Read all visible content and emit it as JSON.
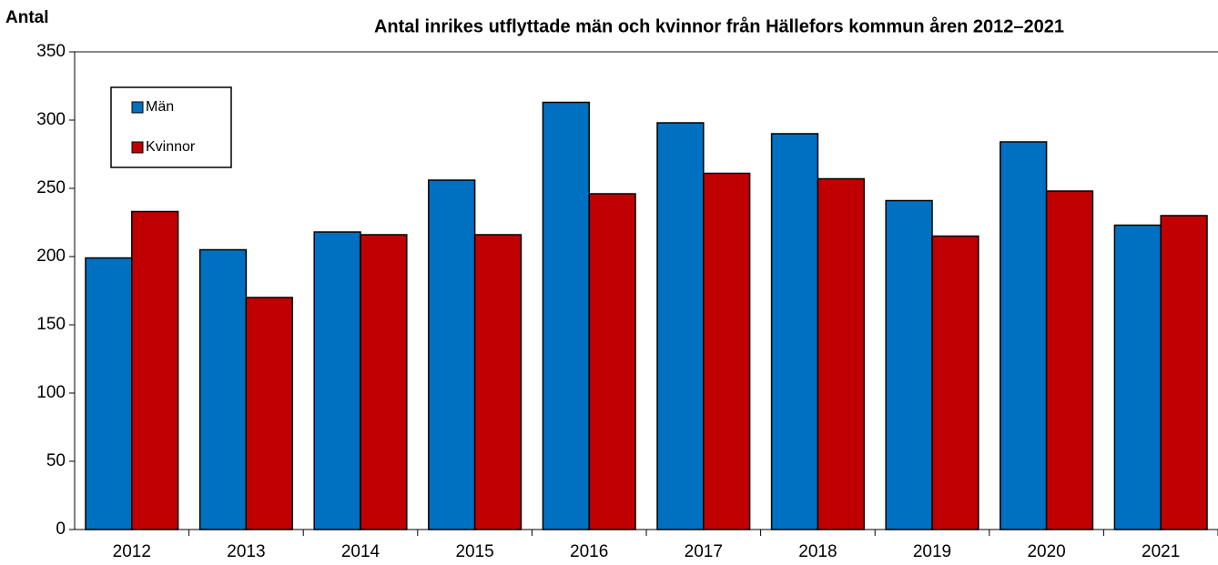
{
  "chart_data": {
    "type": "bar",
    "title": "Antal inrikes utflyttade män och kvinnor från Hällefors kommun åren 2012–2021",
    "y_label": "Antal",
    "categories": [
      "2012",
      "2013",
      "2014",
      "2015",
      "2016",
      "2017",
      "2018",
      "2019",
      "2020",
      "2021"
    ],
    "series": [
      {
        "name": "Män",
        "color": "#0070c0",
        "values": [
          199,
          205,
          218,
          256,
          313,
          298,
          290,
          241,
          284,
          223
        ]
      },
      {
        "name": "Kvinnor",
        "color": "#c00000",
        "values": [
          233,
          170,
          216,
          216,
          246,
          261,
          257,
          215,
          248,
          230
        ]
      }
    ],
    "ylim": [
      0,
      350
    ],
    "yticks": [
      0,
      50,
      100,
      150,
      200,
      250,
      300,
      350
    ],
    "grid": false,
    "legend": "upper left"
  }
}
